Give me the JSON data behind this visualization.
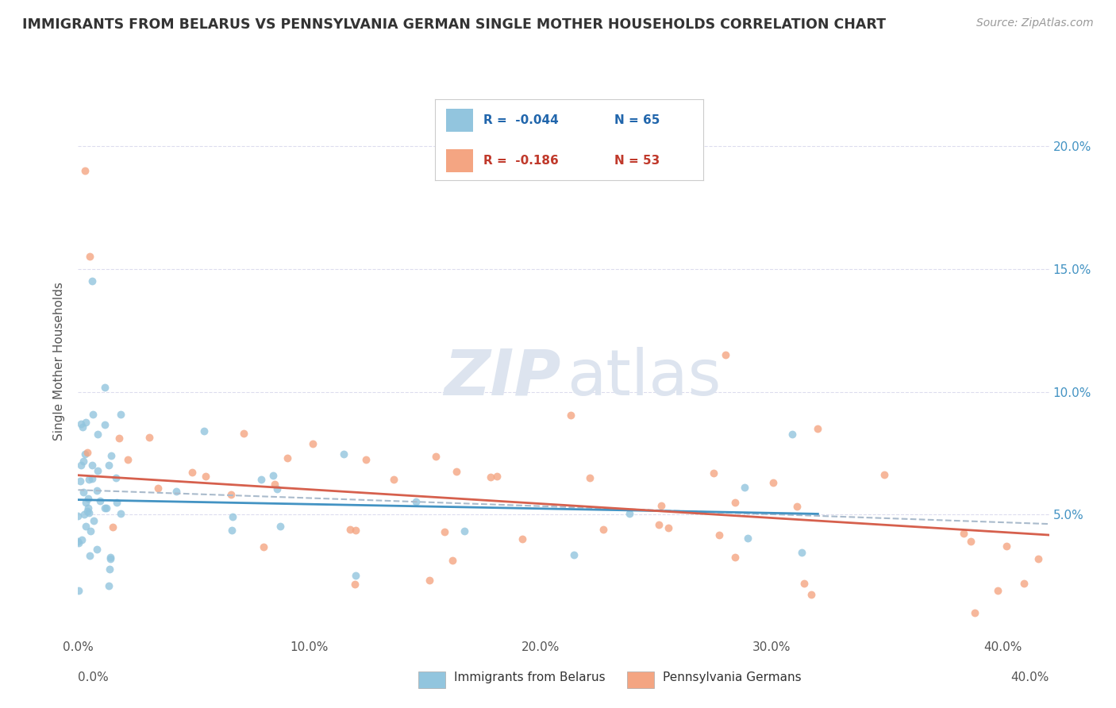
{
  "title": "IMMIGRANTS FROM BELARUS VS PENNSYLVANIA GERMAN SINGLE MOTHER HOUSEHOLDS CORRELATION CHART",
  "source_text": "Source: ZipAtlas.com",
  "ylabel": "Single Mother Households",
  "legend_label1": "Immigrants from Belarus",
  "legend_label2": "Pennsylvania Germans",
  "legend_r1": "R =  -0.044",
  "legend_n1": "N = 65",
  "legend_r2": "R =  -0.186",
  "legend_n2": "N = 53",
  "color_blue": "#92c5de",
  "color_pink": "#f4a582",
  "color_blue_line": "#4393c3",
  "color_pink_line": "#d6604d",
  "color_dash": "#aabbcc",
  "watermark_color": "#dde4ef",
  "ytick_right_color": "#4393c3",
  "xtick_color": "#555555",
  "title_color": "#333333",
  "source_color": "#999999",
  "ylabel_color": "#555555",
  "grid_color": "#ddddee",
  "legend_text_blue": "#2166ac",
  "legend_text_pink": "#c0392b",
  "xlim_min": 0.0,
  "xlim_max": 0.42,
  "ylim_min": 0.0,
  "ylim_max": 0.225,
  "xticks": [
    0.0,
    0.1,
    0.2,
    0.3,
    0.4
  ],
  "yticks": [
    0.05,
    0.1,
    0.15,
    0.2
  ],
  "xtick_labels": [
    "0.0%",
    "10.0%",
    "20.0%",
    "30.0%",
    "40.0%"
  ],
  "ytick_labels": [
    "5.0%",
    "10.0%",
    "15.0%",
    "20.0%"
  ]
}
